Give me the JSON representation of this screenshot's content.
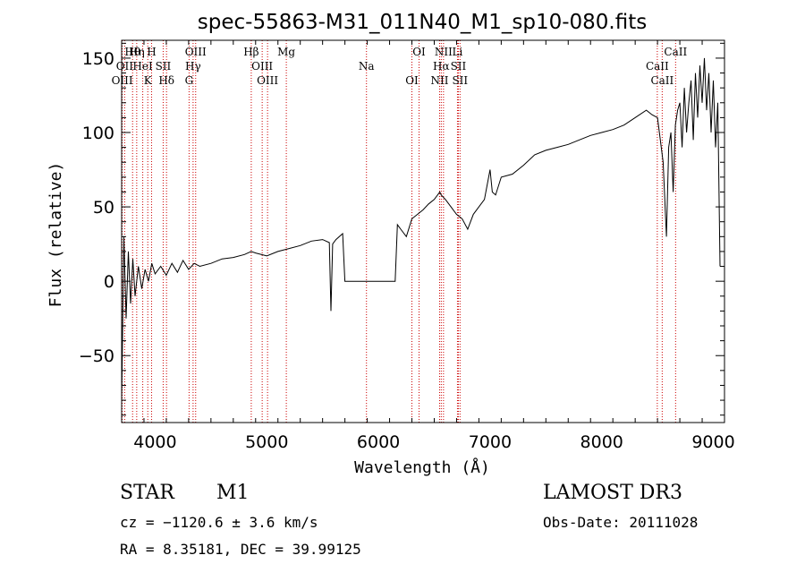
{
  "chart_data": {
    "type": "line",
    "title": "spec-55863-M31_011N40_M1_sp10-080.fits",
    "xlabel": "Wavelength (Å)",
    "ylabel": "Flux (relative)",
    "xlim": [
      3700,
      9100
    ],
    "ylim": [
      -95,
      162
    ],
    "x_ticks": [
      4000,
      5000,
      6000,
      7000,
      8000,
      9000
    ],
    "x_tick_labels": [
      "4000",
      "5000",
      "6000",
      "7000",
      "8000",
      "9000"
    ],
    "y_ticks": [
      -50,
      0,
      50,
      100,
      150
    ],
    "y_tick_labels": [
      "−50",
      "0",
      "50",
      "100",
      "150"
    ],
    "spectrum": {
      "x": [
        3700,
        3720,
        3740,
        3760,
        3780,
        3800,
        3820,
        3850,
        3880,
        3910,
        3940,
        3970,
        4000,
        4050,
        4100,
        4150,
        4200,
        4250,
        4300,
        4350,
        4400,
        4500,
        4600,
        4700,
        4800,
        4860,
        4900,
        5000,
        5100,
        5200,
        5300,
        5400,
        5500,
        5560,
        5575,
        5590,
        5620,
        5680,
        5700,
        6150,
        6170,
        6200,
        6250,
        6300,
        6350,
        6400,
        6450,
        6500,
        6550,
        6563,
        6600,
        6650,
        6700,
        6750,
        6800,
        6850,
        6900,
        6950,
        7000,
        7020,
        7050,
        7100,
        7200,
        7300,
        7400,
        7500,
        7600,
        7700,
        7800,
        7900,
        8000,
        8100,
        8200,
        8300,
        8400,
        8450,
        8500,
        8550,
        8580,
        8600,
        8620,
        8640,
        8660,
        8680,
        8700,
        8720,
        8740,
        8760,
        8780,
        8800,
        8820,
        8840,
        8860,
        8880,
        8900,
        8920,
        8940,
        8960,
        8980,
        9000,
        9020,
        9040,
        9060
      ],
      "y": [
        -80,
        30,
        -25,
        20,
        -15,
        15,
        -10,
        10,
        -5,
        8,
        0,
        12,
        5,
        10,
        4,
        12,
        6,
        14,
        8,
        12,
        10,
        12,
        15,
        16,
        18,
        20,
        19,
        17,
        20,
        22,
        24,
        27,
        28,
        26,
        -20,
        25,
        28,
        32,
        0,
        0,
        38,
        35,
        30,
        42,
        45,
        48,
        52,
        55,
        60,
        58,
        55,
        50,
        45,
        42,
        35,
        45,
        50,
        55,
        75,
        60,
        58,
        70,
        72,
        78,
        85,
        88,
        90,
        92,
        95,
        98,
        100,
        102,
        105,
        110,
        115,
        112,
        110,
        80,
        30,
        90,
        100,
        60,
        105,
        115,
        120,
        90,
        130,
        100,
        120,
        135,
        95,
        140,
        110,
        145,
        120,
        150,
        115,
        140,
        100,
        135,
        90,
        120,
        10
      ]
    },
    "lines": [
      {
        "label": "Hθ",
        "x": 3798
      },
      {
        "label": "OII",
        "x": 3727
      },
      {
        "label": "OIII",
        "x": 3705
      },
      {
        "label": "Hη",
        "x": 3835
      },
      {
        "label": "HeI",
        "x": 3889
      },
      {
        "label": "K",
        "x": 3934
      },
      {
        "label": "H",
        "x": 3968
      },
      {
        "label": "SII",
        "x": 4072
      },
      {
        "label": "Hδ",
        "x": 4102
      },
      {
        "label": "OIII",
        "x": 4363
      },
      {
        "label": "Hγ",
        "x": 4340
      },
      {
        "label": "G",
        "x": 4304
      },
      {
        "label": "Hβ",
        "x": 4861
      },
      {
        "label": "OIII",
        "x": 4959
      },
      {
        "label": "OIII",
        "x": 5007
      },
      {
        "label": "Mg",
        "x": 5175
      },
      {
        "label": "Na",
        "x": 5893
      },
      {
        "label": "OI",
        "x": 6300
      },
      {
        "label": "OI",
        "x": 6364
      },
      {
        "label": "Hα",
        "x": 6563
      },
      {
        "label": "NII",
        "x": 6548
      },
      {
        "label": "NII",
        "x": 6583
      },
      {
        "label": "SII",
        "x": 6716
      },
      {
        "label": "SII",
        "x": 6731
      },
      {
        "label": "Li",
        "x": 6708
      },
      {
        "label": "CaII",
        "x": 8498
      },
      {
        "label": "CaII",
        "x": 8542
      },
      {
        "label": "CaII",
        "x": 8662
      }
    ]
  },
  "info": {
    "class": "STAR",
    "subclass": "M1",
    "survey": "LAMOST DR3",
    "cz": "cz = −1120.6 ± 3.6 km/s",
    "obs_date": "Obs-Date: 20111028",
    "radec": "RA =   8.35181, DEC =  39.99125"
  }
}
